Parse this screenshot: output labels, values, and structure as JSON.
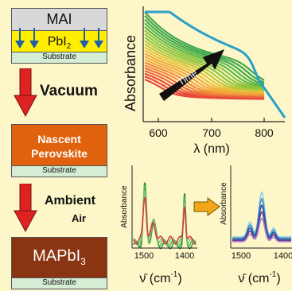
{
  "stack1": {
    "top": "MAI",
    "pbi": "PbI",
    "pbi_sub": "2",
    "substrate": "Substrate"
  },
  "step1": {
    "label": "Vacuum"
  },
  "stack2": {
    "line1": "Nascent",
    "line2": "Perovskite",
    "substrate": "Substrate"
  },
  "step2": {
    "label_1": "Ambient",
    "label_2": "Air"
  },
  "stack3": {
    "main": "MAPbI",
    "main_sub": "3",
    "substrate": "Substrate"
  },
  "main_chart": {
    "ylabel": "Absorbance",
    "xlabel": "λ (nm)",
    "xticks": [
      "600",
      "700",
      "800"
    ],
    "arrow_label": "Time"
  },
  "ir_left": {
    "ylabel": "Absorbance",
    "xticks": [
      "1500",
      "1400"
    ],
    "xlabel_pre": "ν̄ (cm",
    "xlabel_sup": "-1",
    "xlabel_post": ")"
  },
  "ir_right": {
    "ylabel": "Absorbance",
    "xticks": [
      "1500",
      "1400"
    ],
    "xlabel_pre": "ν̄ (cm",
    "xlabel_sup": "-1",
    "xlabel_post": ")"
  },
  "colors": {
    "background": "#fdf6c8",
    "pbi2_layer": "#ffee00",
    "substrate": "#d5ecd5",
    "mai_layer": "#d8d8d8",
    "arrow_down": "#dd2222",
    "nascent_perovskite": "#e0620e",
    "mapbi3": "#8b3412",
    "final_spectrum": "#2aa0c8",
    "ir_arrow": "#f2a71b"
  },
  "icons": [
    "down-arrow-icon",
    "diffusion-arrow-icon",
    "time-arrow-icon",
    "right-arrow-icon"
  ]
}
